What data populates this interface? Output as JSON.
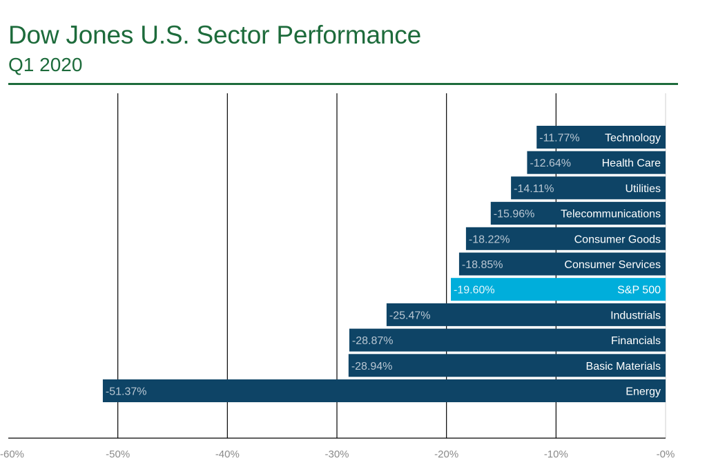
{
  "header": {
    "title": "Dow Jones U.S. Sector Performance",
    "subtitle": "Q1 2020"
  },
  "colors": {
    "brand": "#1d6b3b",
    "bar": "#0e4466",
    "highlight_bar": "#00aedb",
    "value_text": "#b9c7d3",
    "highlight_value_text": "#e4f6fc",
    "grid": "#000000",
    "tick_text": "#8a8a8a"
  },
  "chart_data": {
    "type": "bar",
    "orientation": "horizontal",
    "categories": [
      "Technology",
      "Health Care",
      "Utilities",
      "Telecommunications",
      "Consumer Goods",
      "Consumer Services",
      "S&P 500",
      "Industrials",
      "Financials",
      "Basic Materials",
      "Energy"
    ],
    "values": [
      -11.77,
      -12.64,
      -14.11,
      -15.96,
      -18.22,
      -18.85,
      -19.6,
      -25.47,
      -28.87,
      -28.94,
      -51.37
    ],
    "value_labels": [
      "-11.77%",
      "-12.64%",
      "-14.11%",
      "-15.96%",
      "-18.22%",
      "-18.85%",
      "-19.60%",
      "-25.47%",
      "-28.87%",
      "-28.94%",
      "-51.37%"
    ],
    "highlight": [
      "S&P 500"
    ],
    "xlim": [
      -60,
      0
    ],
    "xticks": [
      -60,
      -50,
      -40,
      -30,
      -20,
      -10,
      0
    ],
    "xtick_labels": [
      "-60%",
      "-50%",
      "-40%",
      "-30%",
      "-20%",
      "-10%",
      "-0%"
    ],
    "grid": true,
    "xlabel": "",
    "ylabel": ""
  }
}
